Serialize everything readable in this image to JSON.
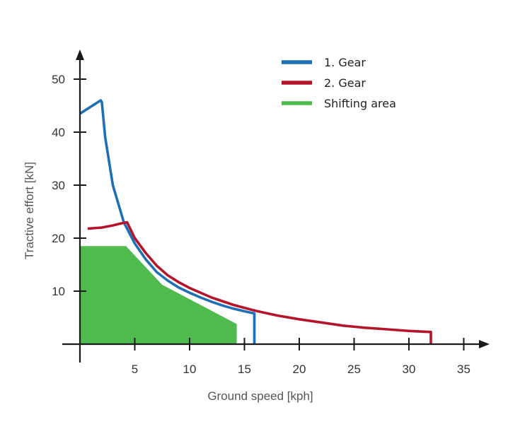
{
  "chart_data": {
    "type": "line",
    "title": "",
    "xlabel": "Ground speed [kph]",
    "ylabel": "Tractive effort [kN]",
    "xlim": [
      0,
      36
    ],
    "ylim": [
      0,
      55
    ],
    "x_ticks": [
      5,
      10,
      15,
      20,
      25,
      30,
      35
    ],
    "y_ticks": [
      10,
      20,
      30,
      40,
      50
    ],
    "grid": false,
    "legend_position": "top-right",
    "series": [
      {
        "name": "1. Gear",
        "type": "line",
        "color": "#1f6fb4",
        "x": [
          0.0,
          1.9,
          2.0,
          2.3,
          3.0,
          4.0,
          5.0,
          6.0,
          7.0,
          8.0,
          9.0,
          10.0,
          11.0,
          12.0,
          13.0,
          14.0,
          15.0,
          15.9,
          15.9
        ],
        "y": [
          43.5,
          46.0,
          45.6,
          39.0,
          30.0,
          23.0,
          19.0,
          16.0,
          13.6,
          12.0,
          10.7,
          9.7,
          8.8,
          8.0,
          7.3,
          6.7,
          6.2,
          5.8,
          0.0
        ]
      },
      {
        "name": "2. Gear",
        "type": "line",
        "color": "#b5152b",
        "x": [
          0.7,
          2.0,
          3.0,
          4.0,
          4.3,
          5.0,
          6.0,
          7.0,
          8.0,
          9.0,
          10.0,
          12.0,
          14.0,
          16.0,
          18.0,
          20.0,
          22.0,
          24.0,
          26.0,
          28.0,
          30.0,
          32.0,
          32.0
        ],
        "y": [
          21.8,
          22.0,
          22.4,
          22.9,
          23.0,
          20.0,
          17.2,
          14.8,
          13.0,
          11.7,
          10.6,
          8.8,
          7.4,
          6.3,
          5.4,
          4.7,
          4.1,
          3.5,
          3.1,
          2.8,
          2.5,
          2.3,
          0.0
        ]
      },
      {
        "name": "Shifting area",
        "type": "area",
        "color": "#4fbb4f",
        "x": [
          0.0,
          4.2,
          7.5,
          14.3,
          14.3,
          0.0
        ],
        "y": [
          18.5,
          18.5,
          11.2,
          3.8,
          0.0,
          0.0
        ]
      }
    ]
  }
}
